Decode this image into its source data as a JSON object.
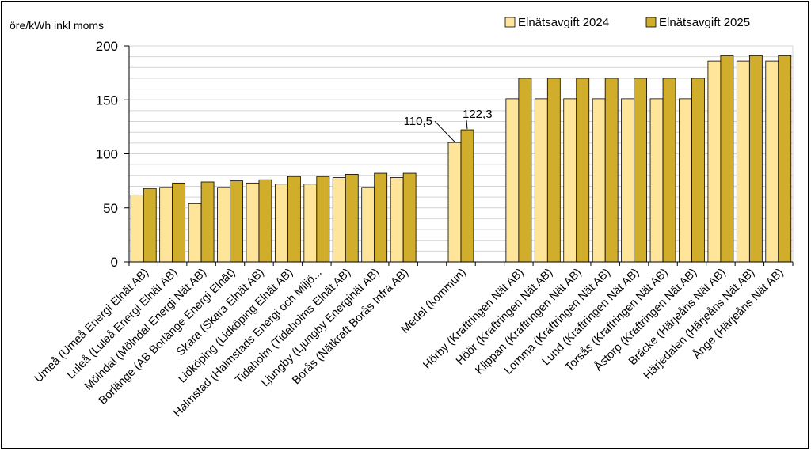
{
  "chart_data": {
    "type": "bar",
    "ylabel": "öre/kWh inkl moms",
    "ylim": [
      0,
      200
    ],
    "yticks": [
      0,
      50,
      100,
      150,
      200
    ],
    "grid": true,
    "legend_position": "top-right",
    "categories": [
      "Umeå (Umeå Energi Elnät AB)",
      "Luleå (Luleå Energi Elnät AB)",
      "Mölndal (Mölndal Energi Nät AB)",
      "Borlänge (AB Borlänge Energi Elnät)",
      "Skara (Skara Elnät AB)",
      "Lidköping (Lidköping Elnät AB)",
      "Halmstad (Halmstads Energi och Miljö...",
      "Tidaholm (Tidaholms Elnät AB)",
      "Ljungby (Ljungby Energinät AB)",
      "Borås (Nätkraft Borås Infra AB)",
      "",
      "Medel (kommun)",
      "",
      "Hörby (Kraftringen Nät AB)",
      "Höör (Kraftringen Nät AB)",
      "Klippan (Kraftringen Nät AB)",
      "Lomma (Kraftringen Nät AB)",
      "Lund (Kraftringen Nät AB)",
      "Torsås (Kraftringen Nät AB)",
      "Åstorp (Kraftringen Nät AB)",
      "Bräcke (Härjeåns Nät AB)",
      "Härjedalen (Härjeåns Nät AB)",
      "Ånge (Härjeåns Nät AB)"
    ],
    "series": [
      {
        "name": "Elnätsavgift 2024",
        "color": "#ffe599",
        "values": [
          62,
          69,
          54,
          69,
          73,
          72,
          72,
          78,
          69,
          78,
          null,
          110.5,
          null,
          151,
          151,
          151,
          151,
          151,
          151,
          151,
          186,
          186,
          186
        ]
      },
      {
        "name": "Elnätsavgift 2025",
        "color": "#d0ad2a",
        "values": [
          68,
          73,
          74,
          75,
          76,
          79,
          79,
          81,
          82,
          82,
          null,
          122.3,
          null,
          170,
          170,
          170,
          170,
          170,
          170,
          170,
          191,
          191,
          191
        ]
      }
    ],
    "annotations": [
      {
        "text": "110,5",
        "category_index": 11,
        "series": 0
      },
      {
        "text": "122,3",
        "category_index": 11,
        "series": 1
      }
    ]
  }
}
